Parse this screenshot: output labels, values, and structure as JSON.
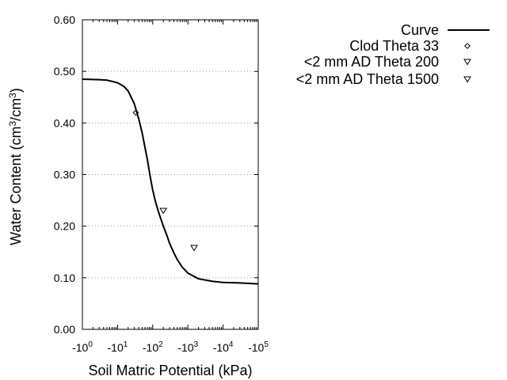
{
  "chart_data": {
    "type": "line",
    "xlabel": "Soil Matric Potential (kPa)",
    "ylabel": "Water Content (cm³/cm³)",
    "x_scale": "log",
    "x_direction": "negative",
    "xlim": [
      1,
      100000
    ],
    "ylim": [
      0.0,
      0.6
    ],
    "x_ticks": [
      {
        "base": "-10",
        "exp": "0",
        "value": 1
      },
      {
        "base": "-10",
        "exp": "1",
        "value": 10
      },
      {
        "base": "-10",
        "exp": "2",
        "value": 100
      },
      {
        "base": "-10",
        "exp": "3",
        "value": 1000
      },
      {
        "base": "-10",
        "exp": "4",
        "value": 10000
      },
      {
        "base": "-10",
        "exp": "5",
        "value": 100000
      }
    ],
    "y_ticks": [
      "0.00",
      "0.10",
      "0.20",
      "0.30",
      "0.40",
      "0.50",
      "0.60"
    ],
    "grid": "horizontal-dotted",
    "legend_position": "right",
    "series": [
      {
        "name": "Curve",
        "kind": "line",
        "color": "#000000",
        "x": [
          1,
          3,
          5,
          10,
          15,
          20,
          30,
          40,
          50,
          60,
          70,
          80,
          90,
          100,
          120,
          150,
          200,
          250,
          300,
          400,
          500,
          700,
          1000,
          2000,
          5000,
          10000,
          30000,
          100000
        ],
        "y": [
          0.485,
          0.484,
          0.483,
          0.478,
          0.471,
          0.462,
          0.437,
          0.408,
          0.381,
          0.353,
          0.33,
          0.306,
          0.286,
          0.27,
          0.247,
          0.225,
          0.2,
          0.183,
          0.167,
          0.148,
          0.135,
          0.12,
          0.109,
          0.098,
          0.093,
          0.091,
          0.09,
          0.088
        ]
      },
      {
        "name": "Clod Theta 33",
        "kind": "marker",
        "marker": "diamond",
        "x": [
          33
        ],
        "y": [
          0.42
        ]
      },
      {
        "name": "<2 mm AD Theta 200",
        "kind": "marker",
        "marker": "triangle-down",
        "x": [
          200
        ],
        "y": [
          0.23
        ]
      },
      {
        "name": "<2 mm AD Theta 1500",
        "kind": "marker",
        "marker": "triangle-down",
        "x": [
          1500
        ],
        "y": [
          0.158
        ]
      }
    ]
  }
}
